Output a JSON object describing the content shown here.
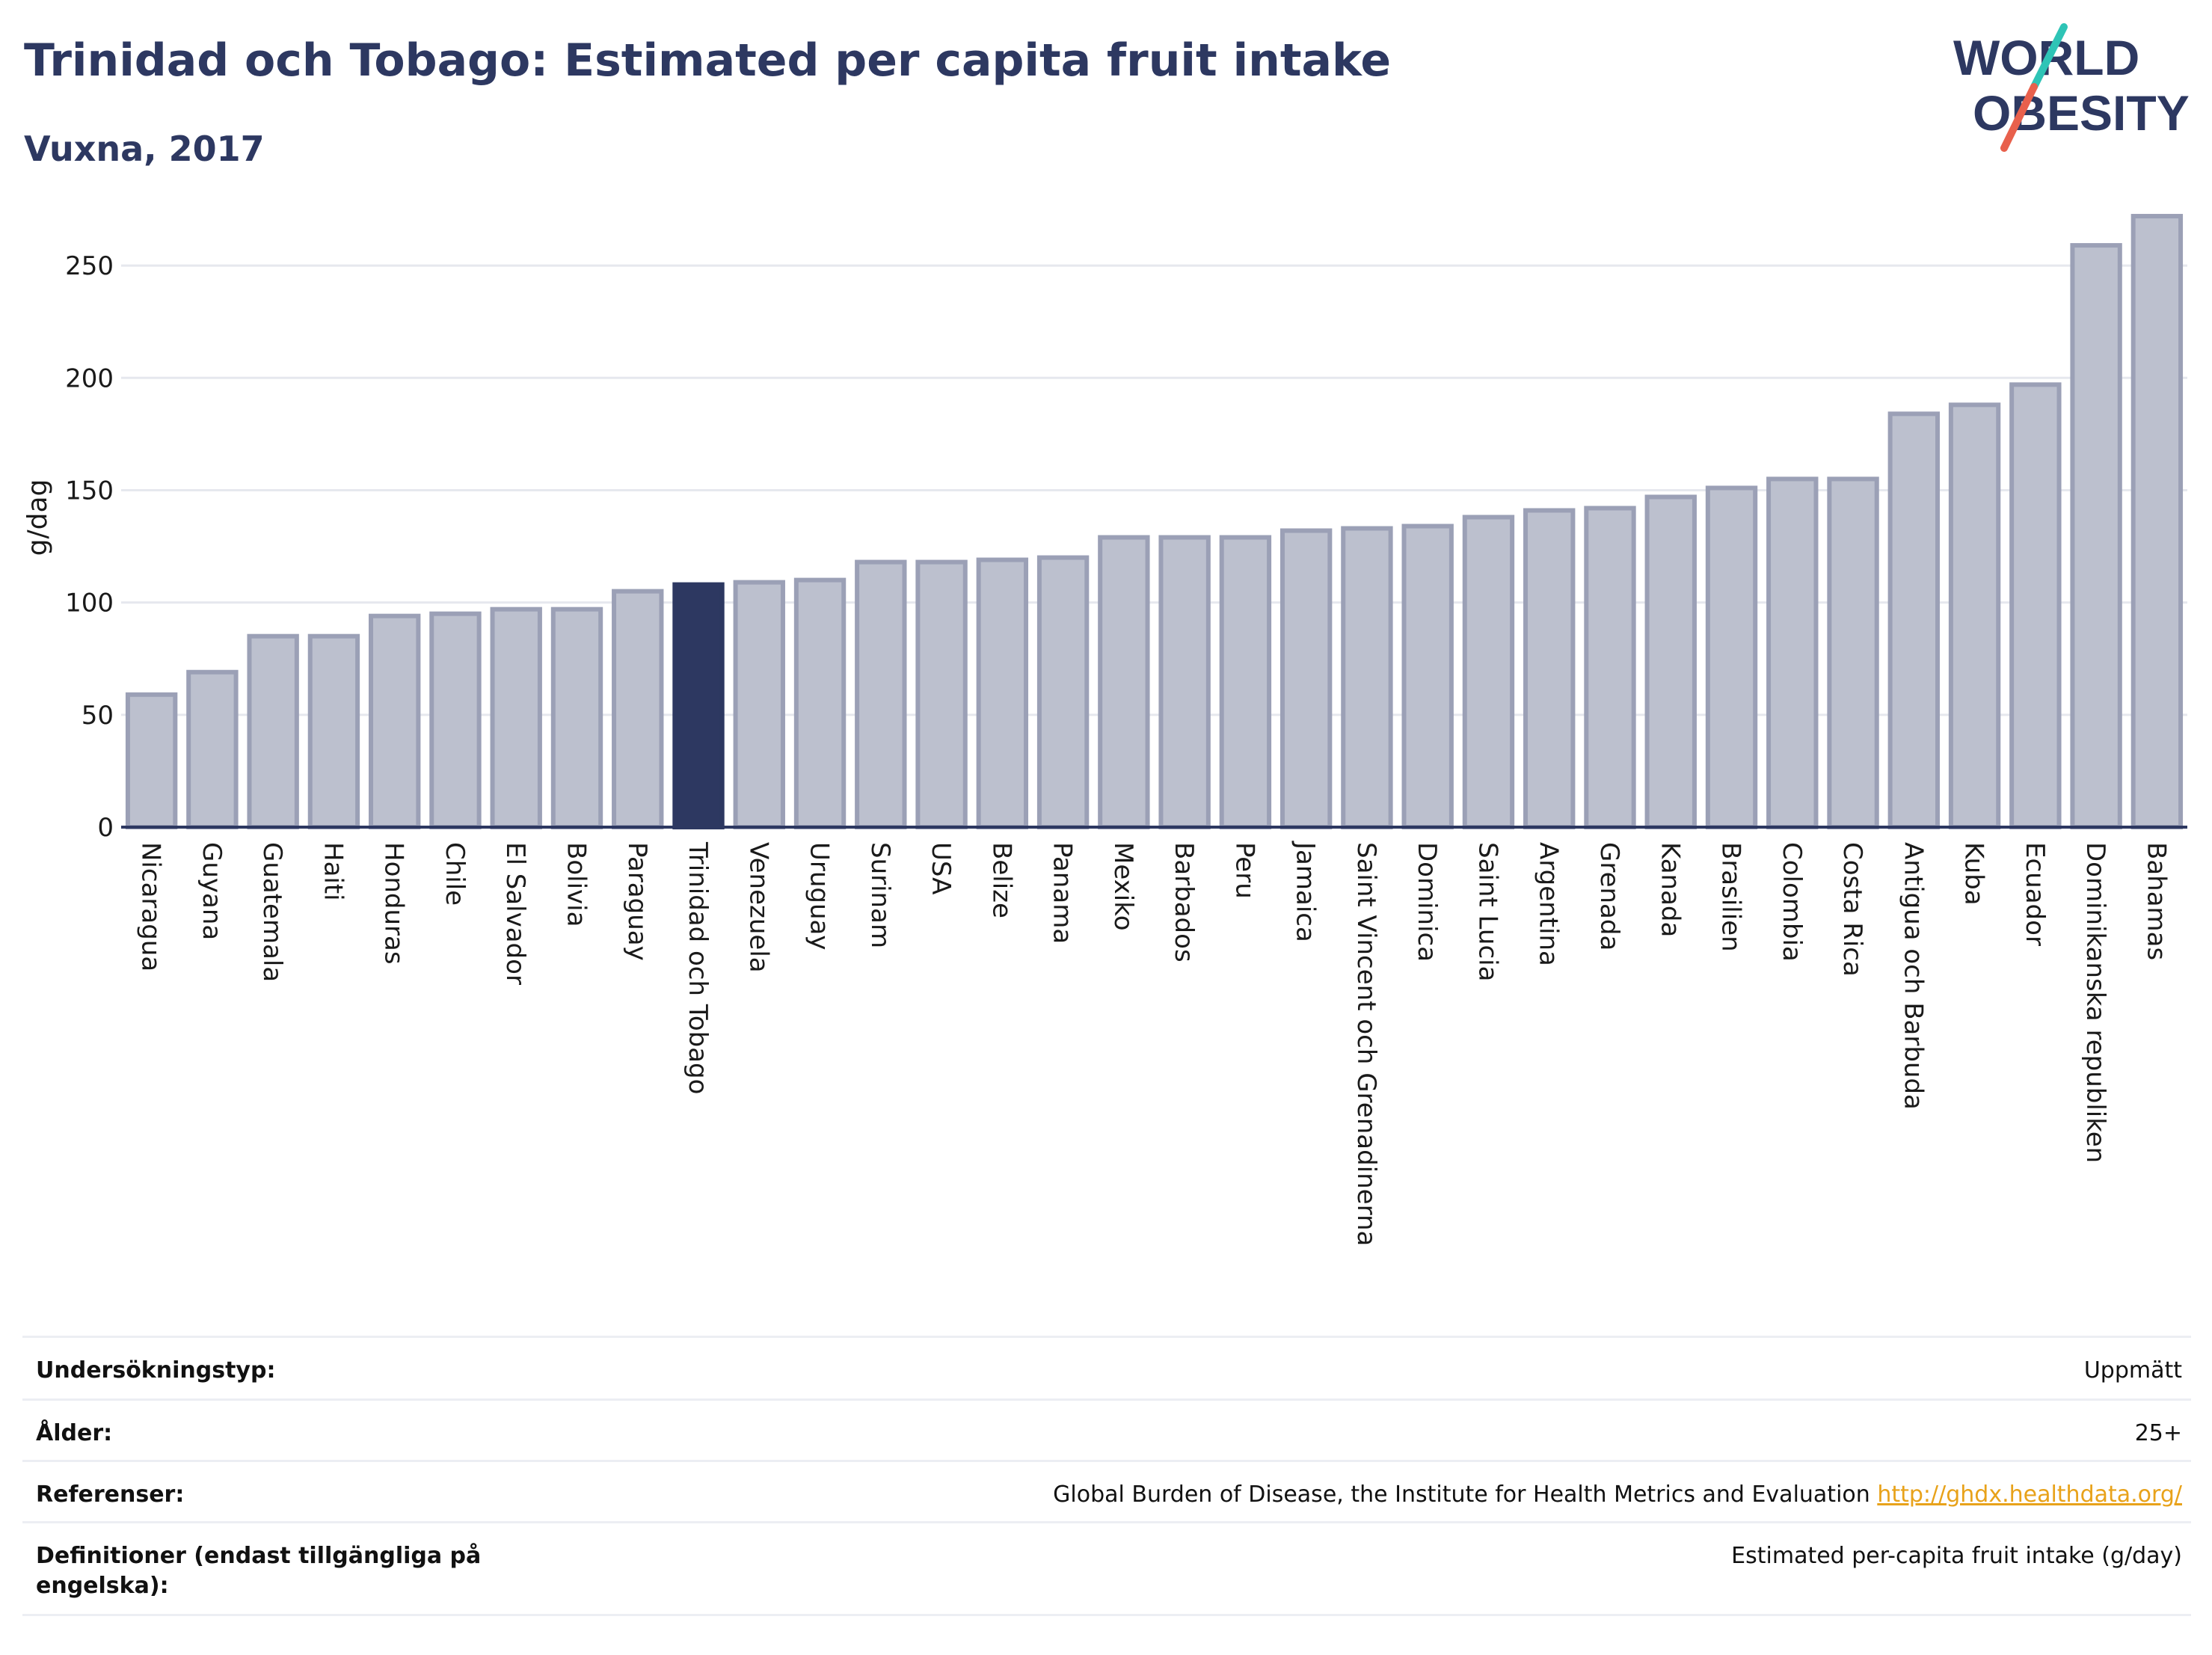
{
  "header": {
    "title": "Trinidad och Tobago: Estimated per capita fruit intake",
    "subtitle": "Vuxna, 2017"
  },
  "logo": {
    "line1": "WORLD",
    "line2": "OBESITY",
    "slash_colors": [
      "#2ec4b6",
      "#e8604c"
    ],
    "text_color": "#2d3861"
  },
  "colors": {
    "bar": "#bcc0ce",
    "bar_stroke": "#9ba0b6",
    "highlight": "#2d3861",
    "grid": "#e6e8ee",
    "axis": "#2d3861"
  },
  "chart_data": {
    "type": "bar",
    "ylabel": "g/dag",
    "ylim": [
      0,
      280
    ],
    "yticks": [
      0,
      50,
      100,
      150,
      200,
      250
    ],
    "grid": true,
    "highlight": "Trinidad och Tobago",
    "categories": [
      "Nicaragua",
      "Guyana",
      "Guatemala",
      "Haiti",
      "Honduras",
      "Chile",
      "El Salvador",
      "Bolivia",
      "Paraguay",
      "Trinidad och Tobago",
      "Venezuela",
      "Uruguay",
      "Surinam",
      "USA",
      "Belize",
      "Panama",
      "Mexiko",
      "Barbados",
      "Peru",
      "Jamaica",
      "Saint Vincent och Grenadinerna",
      "Dominica",
      "Saint Lucia",
      "Argentina",
      "Grenada",
      "Kanada",
      "Brasilien",
      "Colombia",
      "Costa Rica",
      "Antigua och Barbuda",
      "Kuba",
      "Ecuador",
      "Dominikanska republiken",
      "Bahamas"
    ],
    "values": [
      59,
      69,
      85,
      85,
      94,
      95,
      97,
      97,
      105,
      108,
      109,
      110,
      118,
      118,
      119,
      120,
      129,
      129,
      129,
      132,
      133,
      134,
      138,
      141,
      142,
      147,
      151,
      155,
      155,
      184,
      188,
      197,
      259,
      272
    ]
  },
  "meta": {
    "rows": [
      {
        "label": "Undersökningstyp:",
        "value": "Uppmätt",
        "link": ""
      },
      {
        "label": "Ålder:",
        "value": "25+",
        "link": ""
      },
      {
        "label": "Referenser:",
        "value": "Global Burden of Disease, the Institute for Health Metrics and Evaluation ",
        "link": "http://ghdx.healthdata.org/"
      },
      {
        "label": "Definitioner (endast tillgängliga på engelska):",
        "value": "Estimated per-capita fruit intake (g/day)",
        "link": ""
      }
    ]
  }
}
